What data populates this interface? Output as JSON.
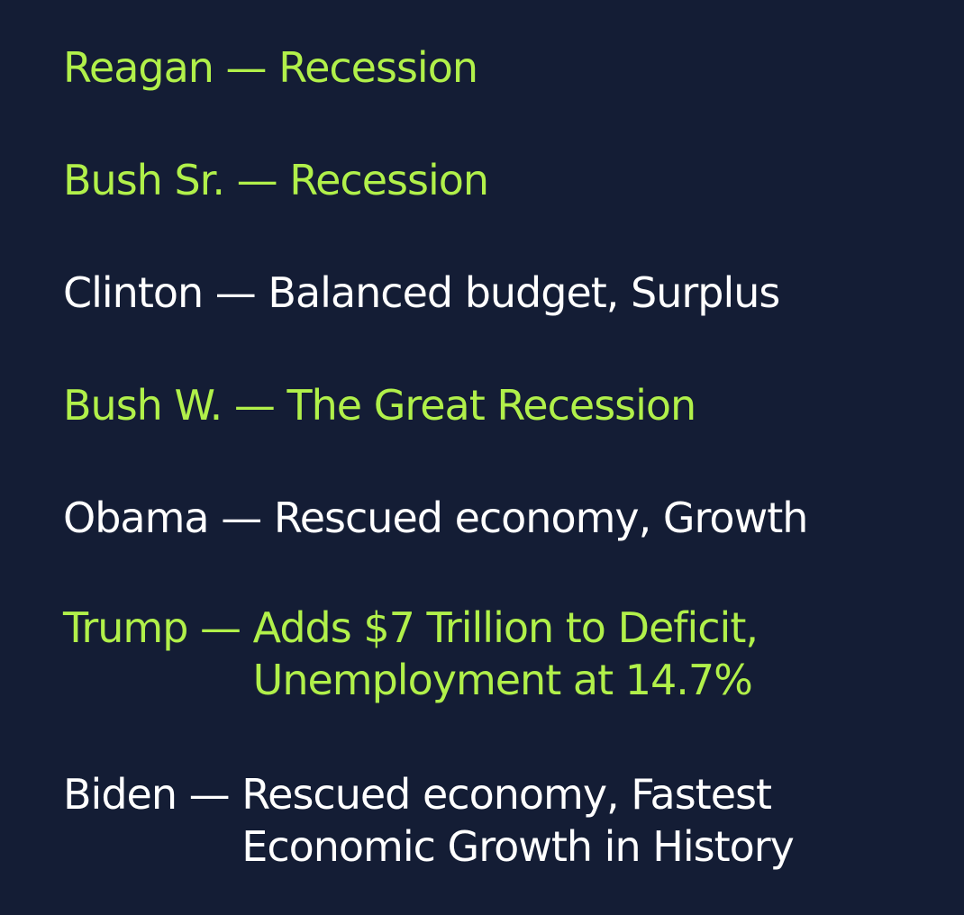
{
  "rows": [
    {
      "name": "Reagan",
      "separator": " — ",
      "lines": [
        "Recession"
      ],
      "color": "#b1f04a"
    },
    {
      "name": "Bush Sr.",
      "separator": " — ",
      "lines": [
        "Recession"
      ],
      "color": "#b1f04a"
    },
    {
      "name": "Clinton",
      "separator": " — ",
      "lines": [
        "Balanced budget, Surplus"
      ],
      "color": "#ffffff"
    },
    {
      "name": "Bush W.",
      "separator": " — ",
      "lines": [
        "The Great Recession"
      ],
      "color": "#b1f04a"
    },
    {
      "name": "Obama",
      "separator": " — ",
      "lines": [
        "Rescued economy, Growth"
      ],
      "color": "#ffffff"
    },
    {
      "name": "Trump",
      "separator": " — ",
      "lines": [
        "Adds $7 Trillion to Deficit,",
        "Unemployment at 14.7%"
      ],
      "color": "#b1f04a"
    },
    {
      "name": "Biden",
      "separator": " — ",
      "lines": [
        "Rescued economy,  Fastest",
        "Economic Growth in History"
      ],
      "color": "#ffffff"
    }
  ],
  "colors": {
    "background": "#141d35",
    "highlight": "#b1f04a",
    "text": "#ffffff"
  }
}
